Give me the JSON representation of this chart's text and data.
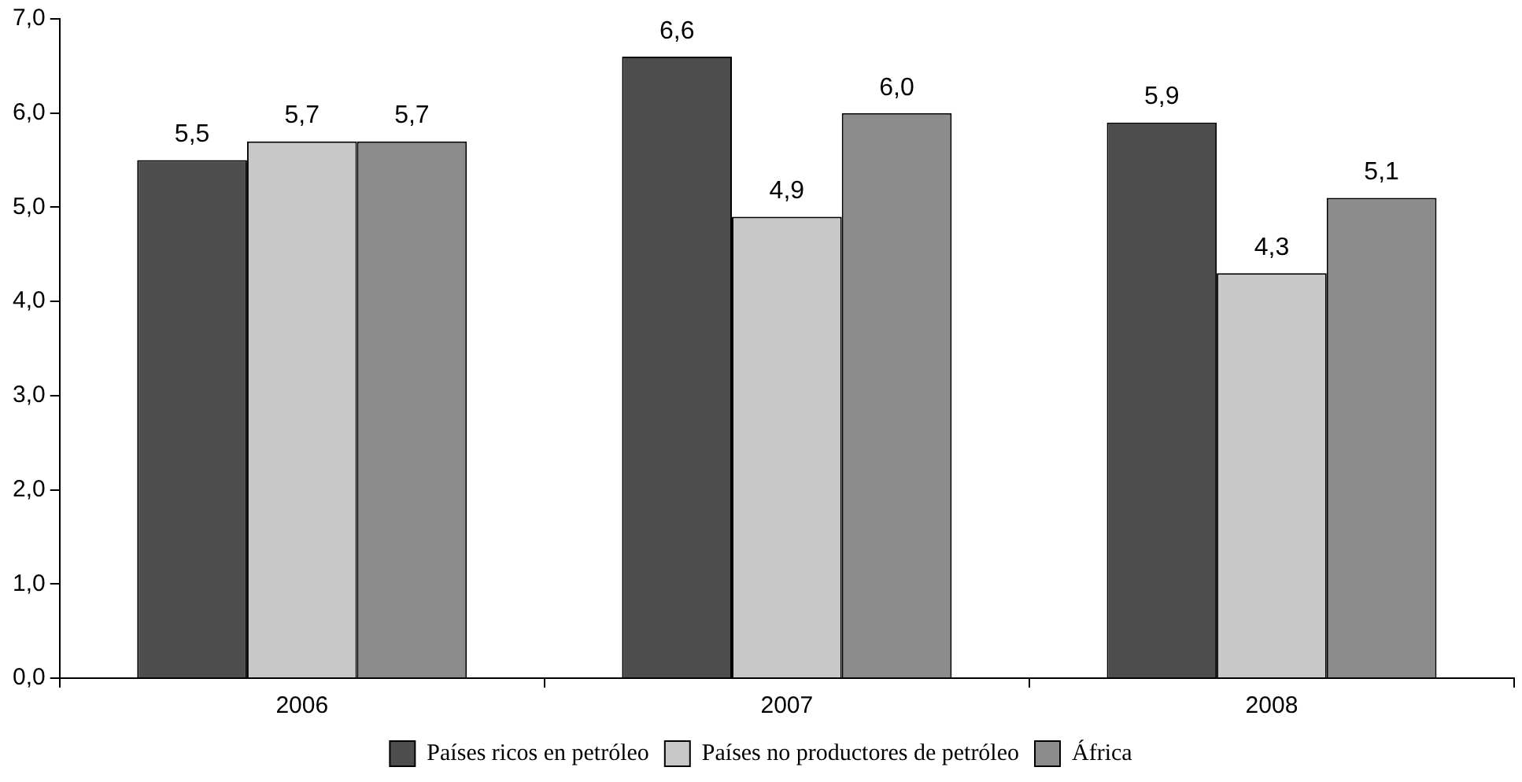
{
  "chart_data": {
    "type": "bar",
    "categories": [
      "2006",
      "2007",
      "2008"
    ],
    "series": [
      {
        "name": "Países ricos en petróleo",
        "color": "#4d4d4d",
        "values": [
          5.5,
          6.6,
          5.9
        ],
        "value_labels": [
          "5,5",
          "6,6",
          "5,9"
        ]
      },
      {
        "name": "Países no productores de petróleo",
        "color": "#c8c8c8",
        "values": [
          5.7,
          4.9,
          4.3
        ],
        "value_labels": [
          "5,7",
          "4,9",
          "4,3"
        ]
      },
      {
        "name": "África",
        "color": "#8c8c8c",
        "values": [
          5.7,
          6.0,
          5.1
        ],
        "value_labels": [
          "5,7",
          "6,0",
          "5,1"
        ]
      }
    ],
    "ylim": [
      0,
      7
    ],
    "yticks": [
      {
        "value": 0,
        "label": "0,0"
      },
      {
        "value": 1,
        "label": "1,0"
      },
      {
        "value": 2,
        "label": "2,0"
      },
      {
        "value": 3,
        "label": "3,0"
      },
      {
        "value": 4,
        "label": "4,0"
      },
      {
        "value": 5,
        "label": "5,0"
      },
      {
        "value": 6,
        "label": "6,0"
      },
      {
        "value": 7,
        "label": "7,0"
      }
    ],
    "grid": false,
    "legend": "bottom"
  }
}
